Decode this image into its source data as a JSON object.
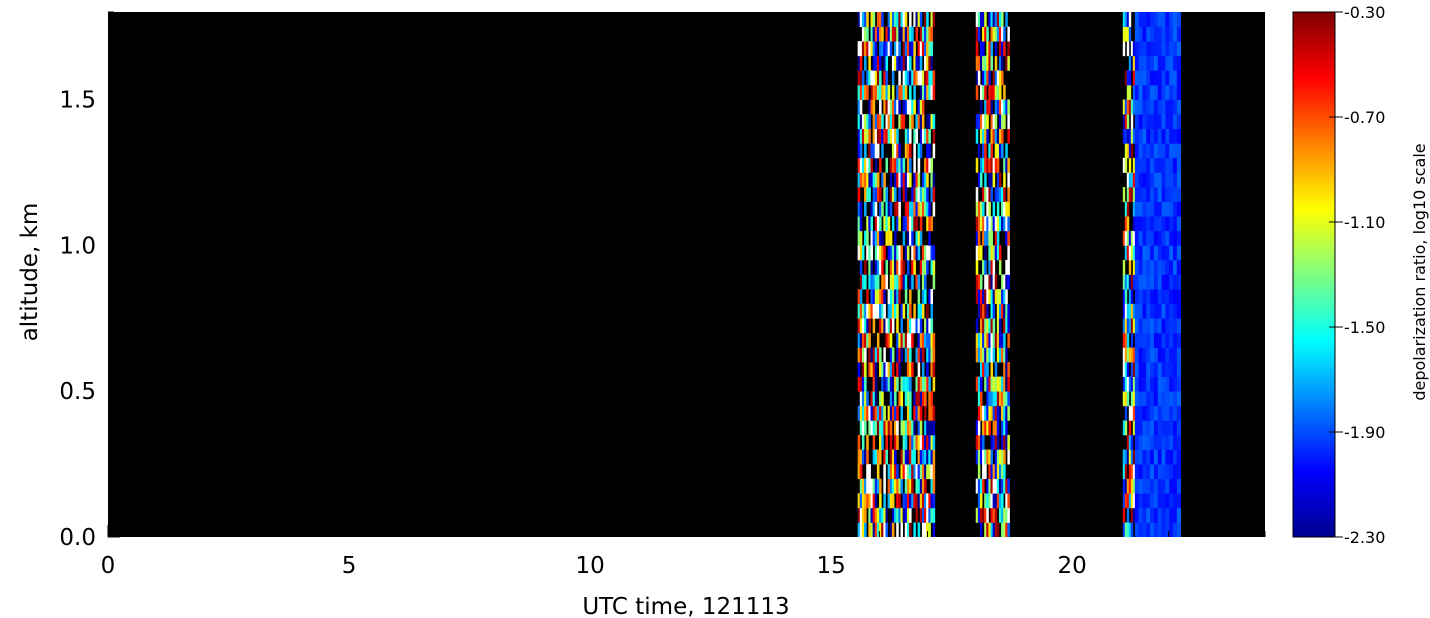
{
  "chart_data": {
    "type": "heatmap",
    "title": "",
    "xlabel": "UTC time, 121113",
    "ylabel": "altitude, km",
    "xlim": [
      0,
      24
    ],
    "ylim": [
      0,
      1.8
    ],
    "xticks": [
      0,
      5,
      10,
      15,
      20
    ],
    "yticks": [
      0.0,
      0.5,
      1.0,
      1.5
    ],
    "ytick_labels": [
      "0.0",
      "0.5",
      "1.0",
      "1.5"
    ],
    "background_color": "#000000",
    "colormap": "jet",
    "colorbar": {
      "label": "depolarization ratio, log10 scale",
      "range": [
        -2.3,
        -0.3
      ],
      "ticks": [
        -0.3,
        -0.7,
        -1.1,
        -1.5,
        -1.9,
        -2.3
      ],
      "tick_labels": [
        "-0.30",
        "-0.70",
        "-1.10",
        "-1.50",
        "-1.90",
        "-2.30"
      ]
    },
    "regions": [
      {
        "x_range": [
          15.55,
          17.15
        ],
        "y_range": [
          0,
          1.8
        ],
        "pattern": "noisy",
        "value_range": [
          -2.3,
          -0.3
        ]
      },
      {
        "x_range": [
          18.0,
          18.7
        ],
        "y_range": [
          0,
          1.8
        ],
        "pattern": "noisy",
        "value_range": [
          -2.3,
          -0.3
        ]
      },
      {
        "x_range": [
          21.05,
          21.3
        ],
        "y_range": [
          0,
          1.8
        ],
        "pattern": "noisy",
        "value_range": [
          -2.3,
          -0.3
        ]
      },
      {
        "x_range": [
          21.3,
          22.25
        ],
        "y_range": [
          0,
          1.8
        ],
        "pattern": "uniform",
        "value_range": [
          -2.05,
          -1.85
        ]
      }
    ]
  }
}
